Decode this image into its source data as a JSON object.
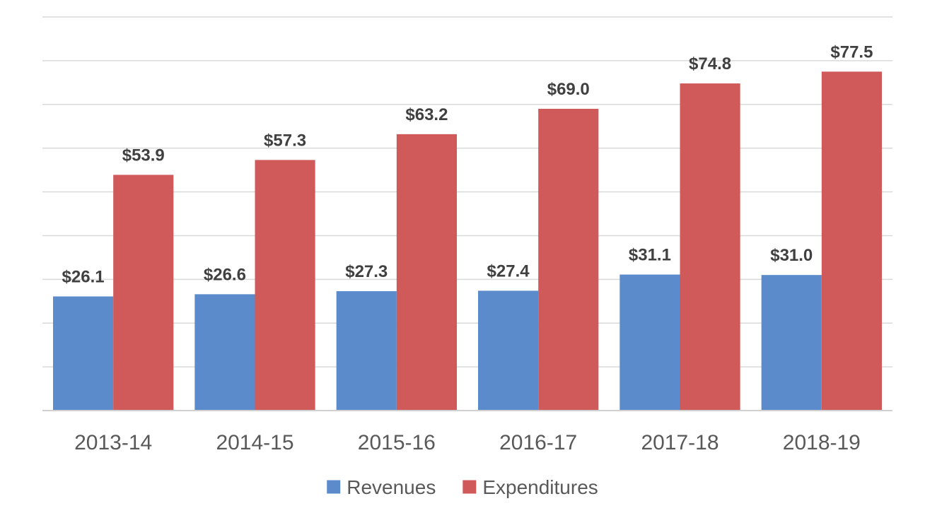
{
  "chart_data": {
    "type": "bar",
    "categories": [
      "2013-14",
      "2014-15",
      "2015-16",
      "2016-17",
      "2017-18",
      "2018-19"
    ],
    "series": [
      {
        "name": "Revenues",
        "color": "#5b8bcb",
        "values": [
          26.1,
          26.6,
          27.3,
          27.4,
          31.1,
          31.0
        ],
        "labels": [
          "$26.1",
          "$26.6",
          "$27.3",
          "$27.4",
          "$31.1",
          "$31.0"
        ]
      },
      {
        "name": "Expenditures",
        "color": "#d05a5a",
        "values": [
          53.9,
          57.3,
          63.2,
          69.0,
          74.8,
          77.5
        ],
        "labels": [
          "$53.9",
          "$57.3",
          "$63.2",
          "$69.0",
          "$74.8",
          "$77.5"
        ]
      }
    ],
    "ylim": [
      0,
      90
    ],
    "grid": true,
    "legend_position": "bottom",
    "title": "",
    "xlabel": "",
    "ylabel": ""
  }
}
